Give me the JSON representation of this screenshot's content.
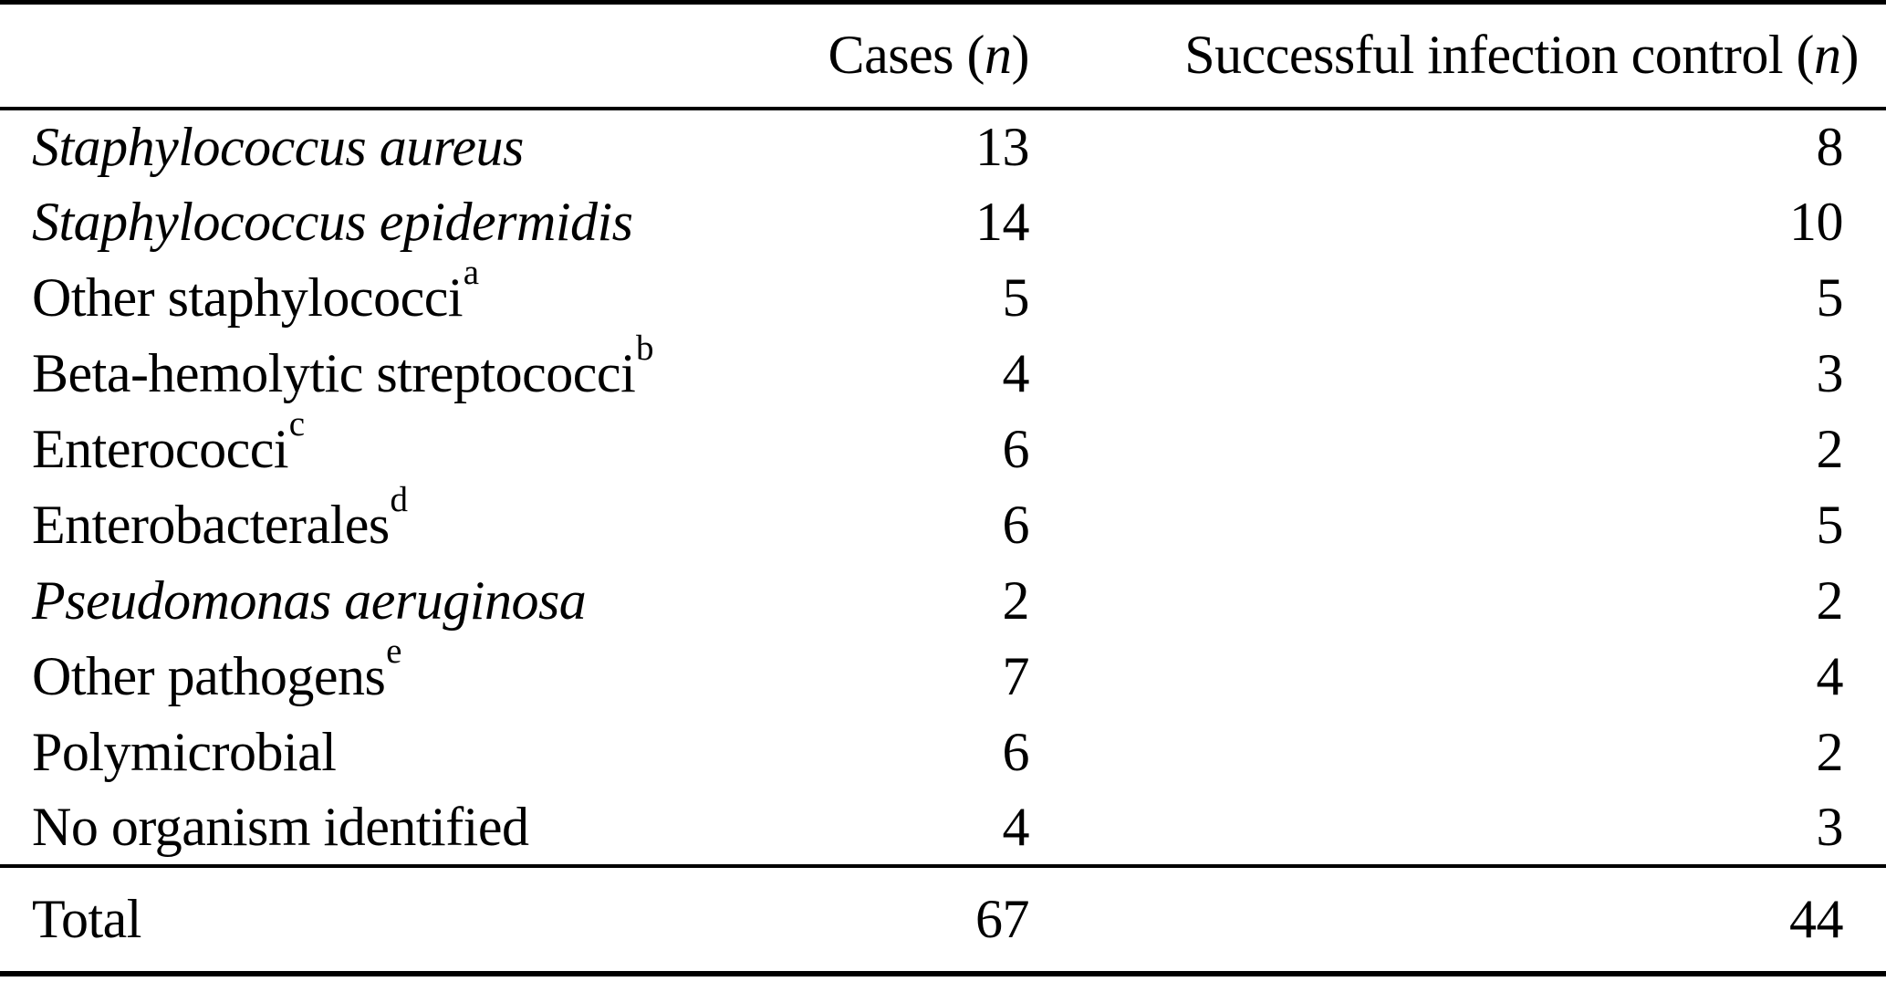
{
  "header": {
    "organism_label": "",
    "cases": {
      "prefix": "Cases (",
      "n": "n",
      "suffix": ")"
    },
    "success": {
      "prefix": "Successful infection control (",
      "n": "n",
      "suffix": ")"
    }
  },
  "rows": [
    {
      "label": "Staphylococcus aureus",
      "sup": "",
      "cases": "13",
      "success": "8"
    },
    {
      "label": "Staphylococcus epidermidis",
      "sup": "",
      "cases": "14",
      "success": "10"
    },
    {
      "label": "Other staphylococci",
      "sup": "a",
      "cases": "5",
      "success": "5"
    },
    {
      "label": "Beta-hemolytic streptococci",
      "sup": "b",
      "cases": "4",
      "success": "3"
    },
    {
      "label": "Enterococci",
      "sup": "c",
      "cases": "6",
      "success": "2"
    },
    {
      "label": "Enterobacterales",
      "sup": "d",
      "cases": "6",
      "success": "5"
    },
    {
      "label": "Pseudomonas aeruginosa",
      "sup": "",
      "cases": "2",
      "success": "2"
    },
    {
      "label": "Other pathogens",
      "sup": "e",
      "cases": "7",
      "success": "4"
    },
    {
      "label": "Polymicrobial",
      "sup": "",
      "cases": "6",
      "success": "2"
    },
    {
      "label": "No organism identified",
      "sup": "",
      "cases": "4",
      "success": "3"
    }
  ],
  "total": {
    "label": "Total",
    "cases": "67",
    "success": "44"
  },
  "colors": {
    "text": "#000000",
    "background": "#ffffff",
    "rule": "#000000"
  }
}
